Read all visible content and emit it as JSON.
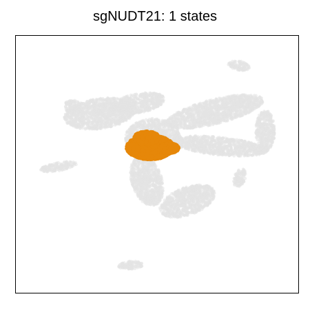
{
  "chart_data": {
    "type": "scatter",
    "title": "sgNUDT21: 1 states",
    "xlabel": "",
    "ylabel": "",
    "axes_ticks": false,
    "grid": false,
    "background_color": "#e3e3e3",
    "highlight_color": "#e6870a",
    "series": [
      {
        "role": "background",
        "color": "#e3e3e3",
        "clusters": [
          {
            "id": "left-lobe",
            "cx": 145,
            "cy": 165,
            "rx": 52,
            "ry": 22,
            "rot": -8
          },
          {
            "id": "upper-center",
            "cx": 200,
            "cy": 150,
            "rx": 40,
            "ry": 14,
            "rot": -10
          },
          {
            "id": "left-small",
            "cx": 105,
            "cy": 155,
            "rx": 12,
            "ry": 10,
            "rot": 0
          },
          {
            "id": "right-arc-upper",
            "cx": 312,
            "cy": 162,
            "rx": 72,
            "ry": 18,
            "rot": -14
          },
          {
            "id": "right-arc-lower",
            "cx": 318,
            "cy": 212,
            "rx": 70,
            "ry": 13,
            "rot": 6
          },
          {
            "id": "right-tip",
            "cx": 385,
            "cy": 190,
            "rx": 14,
            "ry": 30,
            "rot": 0
          },
          {
            "id": "top-ring",
            "cx": 347,
            "cy": 95,
            "rx": 16,
            "ry": 7,
            "rot": 10
          },
          {
            "id": "left-strand",
            "cx": 85,
            "cy": 242,
            "rx": 27,
            "ry": 6,
            "rot": -10
          },
          {
            "id": "lower-stem",
            "cx": 213,
            "cy": 262,
            "rx": 22,
            "ry": 38,
            "rot": -18
          },
          {
            "id": "lower-right",
            "cx": 272,
            "cy": 292,
            "rx": 42,
            "ry": 20,
            "rot": -20
          },
          {
            "id": "right-hook",
            "cx": 348,
            "cy": 258,
            "rx": 8,
            "ry": 14,
            "rot": 20
          },
          {
            "id": "bottom-isolate",
            "cx": 190,
            "cy": 385,
            "rx": 18,
            "ry": 6,
            "rot": -5
          },
          {
            "id": "center-fill",
            "cx": 222,
            "cy": 200,
            "rx": 40,
            "ry": 28,
            "rot": 0
          }
        ]
      },
      {
        "role": "highlight",
        "name": "state 1",
        "color": "#e6870a",
        "clusters": [
          {
            "id": "highlight-core",
            "cx": 218,
            "cy": 214,
            "rx": 34,
            "ry": 17,
            "rot": 0
          },
          {
            "id": "highlight-top",
            "cx": 213,
            "cy": 200,
            "rx": 18,
            "ry": 9,
            "rot": 0
          },
          {
            "id": "highlight-right",
            "cx": 245,
            "cy": 215,
            "rx": 14,
            "ry": 7,
            "rot": 0
          }
        ]
      }
    ]
  }
}
